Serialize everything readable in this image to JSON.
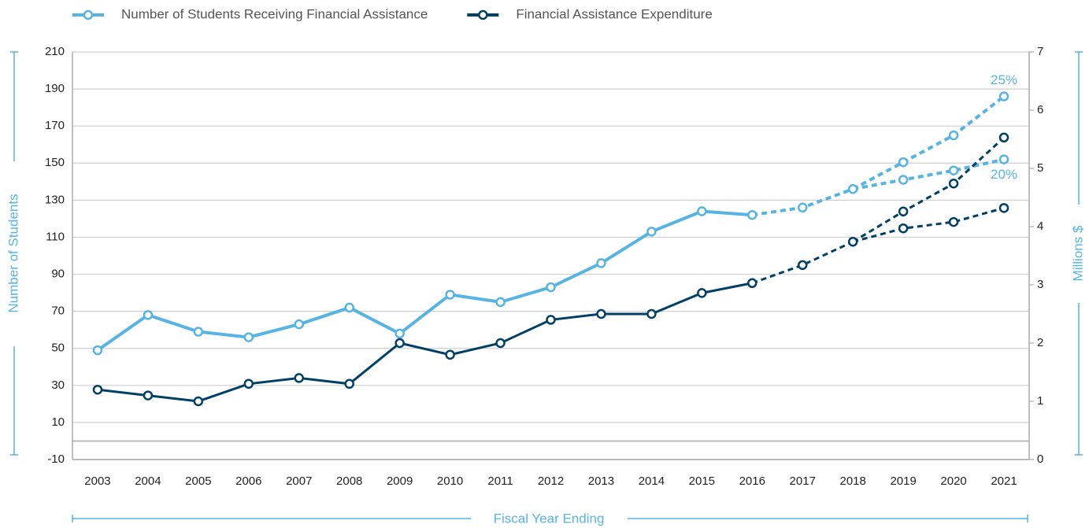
{
  "chart_data": {
    "type": "line",
    "categories": [
      "2003",
      "2004",
      "2005",
      "2006",
      "2007",
      "2008",
      "2009",
      "2010",
      "2011",
      "2012",
      "2013",
      "2014",
      "2015",
      "2016",
      "2017",
      "2018",
      "2019",
      "2020",
      "2021"
    ],
    "ylabel": "Number of Students",
    "y2label": "Millions $",
    "xlabel": "Fiscal Year Ending",
    "ylim": [
      -10,
      210
    ],
    "yticks": [
      -10,
      10,
      30,
      50,
      70,
      90,
      110,
      130,
      150,
      170,
      190,
      210
    ],
    "y2lim": [
      0,
      7
    ],
    "y2ticks": [
      0,
      1,
      2,
      3,
      4,
      5,
      6,
      7
    ],
    "grid": true,
    "legend": "top",
    "projection_start": "2016",
    "series": [
      {
        "name": "Number of Students Receiving Financial Assistance",
        "color": "#56b4e3",
        "axis": "y",
        "values": [
          49,
          68,
          59,
          56,
          63,
          72,
          58,
          79,
          75,
          83,
          96,
          113,
          124,
          122,
          126,
          136,
          null,
          null,
          null
        ],
        "projections": [
          {
            "label": "25%",
            "values": [
              null,
              null,
              null,
              null,
              null,
              null,
              null,
              null,
              null,
              null,
              null,
              null,
              null,
              null,
              null,
              null,
              150.5,
              165,
              186
            ]
          },
          {
            "label": "20%",
            "values": [
              null,
              null,
              null,
              null,
              null,
              null,
              null,
              null,
              null,
              null,
              null,
              null,
              null,
              null,
              null,
              null,
              141,
              146,
              152
            ]
          }
        ]
      },
      {
        "name": "Financial Assistance Expenditure",
        "color": "#003f66",
        "axis": "y2",
        "values": [
          1.2,
          1.1,
          1.0,
          1.3,
          1.4,
          1.3,
          2.0,
          1.8,
          2.0,
          2.4,
          2.5,
          2.5,
          2.86,
          3.03,
          3.34,
          3.74,
          null,
          null,
          null
        ],
        "projections": [
          {
            "values": [
              null,
              null,
              null,
              null,
              null,
              null,
              null,
              null,
              null,
              null,
              null,
              null,
              null,
              null,
              null,
              null,
              4.26,
              4.74,
              5.53
            ]
          },
          {
            "values": [
              null,
              null,
              null,
              null,
              null,
              null,
              null,
              null,
              null,
              null,
              null,
              null,
              null,
              null,
              null,
              null,
              3.97,
              4.08,
              4.32
            ]
          }
        ]
      }
    ]
  }
}
